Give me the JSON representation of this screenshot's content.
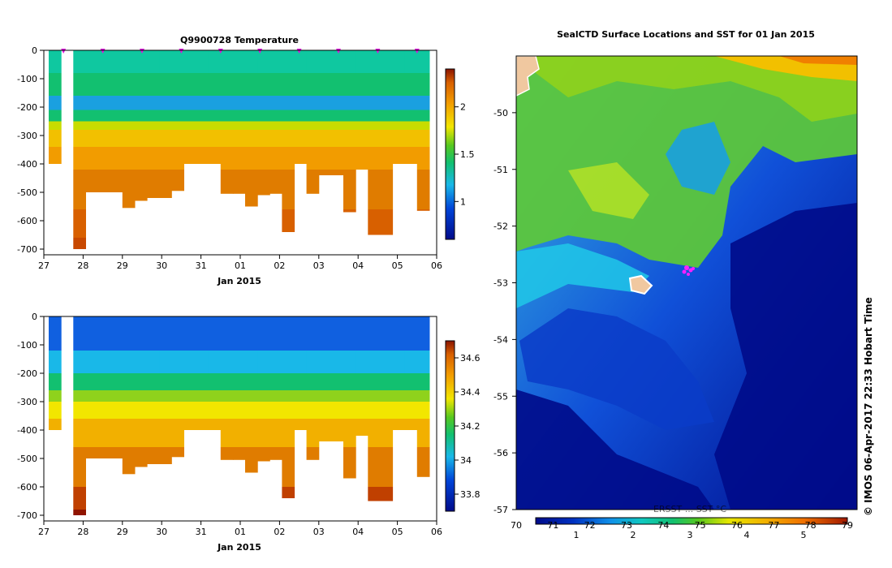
{
  "chart_data": [
    {
      "type": "heatmap",
      "title": "Q9900728  Temperature",
      "xlabel": "Jan 2015",
      "x_tick_labels": [
        "27",
        "28",
        "29",
        "30",
        "31",
        "01",
        "02",
        "03",
        "04",
        "05",
        "06"
      ],
      "y_tick_labels": [
        "0",
        "-100",
        "-200",
        "-300",
        "-400",
        "-500",
        "-600",
        "-700"
      ],
      "ylim": [
        -720,
        0
      ],
      "colorbar_ticks": [
        "1",
        "1.5",
        "2"
      ],
      "colorbar_range": [
        0.6,
        2.4
      ],
      "profile_depths_m": [
        400,
        0,
        700,
        500,
        500,
        500,
        555,
        530,
        520,
        520,
        495,
        400,
        400,
        400,
        505,
        505,
        550,
        510,
        505,
        640,
        400,
        505,
        440,
        440,
        570,
        420,
        650,
        650,
        400,
        400,
        565
      ]
    },
    {
      "type": "heatmap",
      "title": "",
      "xlabel": "Jan 2015",
      "x_tick_labels": [
        "27",
        "28",
        "29",
        "30",
        "31",
        "01",
        "02",
        "03",
        "04",
        "05",
        "06"
      ],
      "y_tick_labels": [
        "0",
        "-100",
        "-200",
        "-300",
        "-400",
        "-500",
        "-600",
        "-700"
      ],
      "ylim": [
        -720,
        0
      ],
      "colorbar_ticks": [
        "33.8",
        "34",
        "34.2",
        "34.4",
        "34.6"
      ],
      "colorbar_range": [
        33.7,
        34.7
      ]
    },
    {
      "type": "heatmap",
      "title": "SealCTD Surface Locations and SST for 01 Jan 2015",
      "y_tick_labels": [
        "-50",
        "-51",
        "-52",
        "-53",
        "-54",
        "-55",
        "-56",
        "-57"
      ],
      "ylim": [
        -57,
        -49
      ]
    }
  ],
  "map_colorbar": {
    "label": "ERSST ... SST °C",
    "top_ticks": [
      "70",
      "71",
      "72",
      "73",
      "74",
      "75",
      "76",
      "77",
      "78",
      "79"
    ],
    "bottom_ticks": [
      "1",
      "2",
      "3",
      "4",
      "5"
    ]
  },
  "credit": "© IMOS 06-Apr-2017 22:33 Hobart Time"
}
